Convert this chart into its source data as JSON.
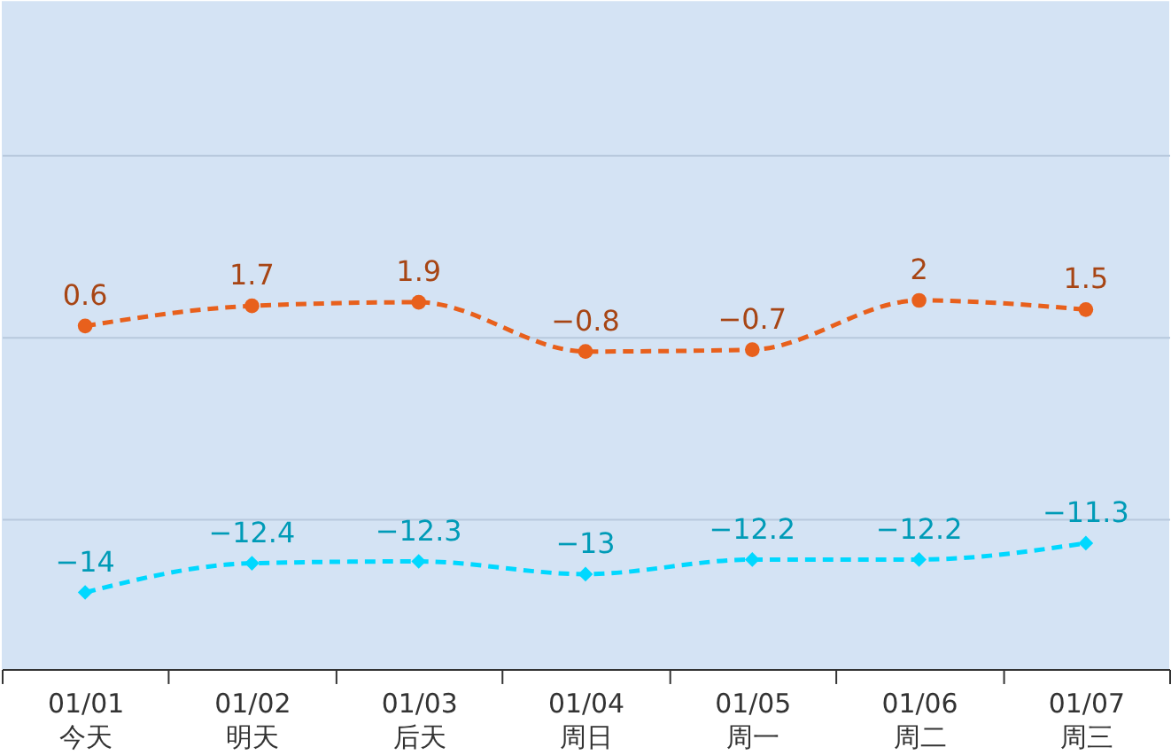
{
  "chart_data": {
    "type": "line",
    "categories": [
      "01/01\n今天",
      "01/02\n明天",
      "01/03\n后天",
      "01/04\n周日",
      "01/05\n周一",
      "01/06\n周二",
      "01/07\n周三"
    ],
    "series": [
      {
        "color": "#e8601c",
        "marker": "circle",
        "line_style": "dashed",
        "values": [
          0.6,
          1.7,
          1.9,
          -0.8,
          -0.7,
          2,
          1.5
        ]
      },
      {
        "color": "#00d8ff",
        "marker": "diamond",
        "line_style": "dashed",
        "values": [
          -14,
          -12.4,
          -12.3,
          -13,
          -12.2,
          -12.2,
          -11.3
        ]
      }
    ],
    "ylim": [
      -18.2,
      18.4
    ],
    "grid": "y",
    "tick_labels": "x",
    "data_labels": true
  }
}
